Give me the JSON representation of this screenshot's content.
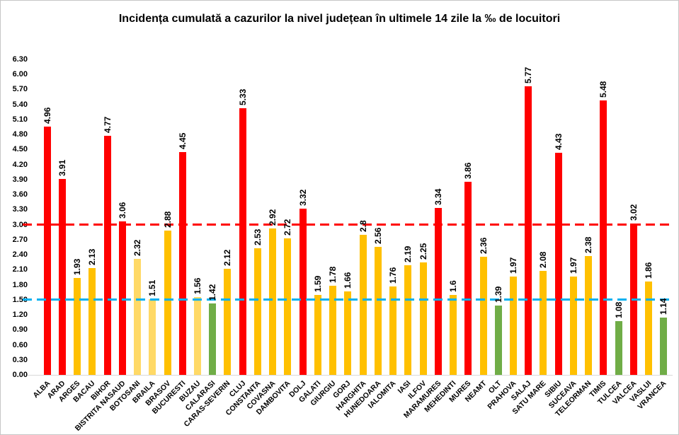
{
  "window": {
    "background": "#ffffff",
    "border_color": "#c6c6c6"
  },
  "chart_data": {
    "type": "bar",
    "title": "Incidența cumulată a cazurilor la nivel județean în ultimele 14 zile la ‰ de locuitori",
    "xlabel": "",
    "ylabel": "",
    "ylim": [
      0,
      6.3
    ],
    "y_tick_step": 0.3,
    "y_tick_labels": [
      "6.30",
      "6.00",
      "5.70",
      "5.40",
      "5.10",
      "4.80",
      "4.50",
      "4.20",
      "3.90",
      "3.60",
      "3.30",
      "3.00",
      "2.70",
      "2.40",
      "2.10",
      "1.80",
      "1.50",
      "1.20",
      "0.90",
      "0.60",
      "0.30",
      "0.00"
    ],
    "grid": false,
    "legend": "none",
    "palette": {
      "red": "#FF0000",
      "gold": "#FFC000",
      "pale_yellow": "#FFD966",
      "green": "#70AD47"
    },
    "reference_lines": [
      {
        "name": "red-threshold-line",
        "value": 3.0,
        "color": "#FF0000",
        "style": "dashed"
      },
      {
        "name": "blue-threshold-line",
        "value": 1.5,
        "color": "#00B0F0",
        "style": "dashed"
      }
    ],
    "categories": [
      "ALBA",
      "ARAD",
      "ARGES",
      "BACAU",
      "BIHOR",
      "BISTRITA NASAUD",
      "BOTOSANI",
      "BRAILA",
      "BRASOV",
      "BUCURESTI",
      "BUZAU",
      "CALARASI",
      "CARAS-SEVERIN",
      "CLUJ",
      "CONSTANTA",
      "COVASNA",
      "DAMBOVITA",
      "DOLJ",
      "GALATI",
      "GIURGIU",
      "GORJ",
      "HARGHITA",
      "HUNEDOARA",
      "IALOMITA",
      "IASI",
      "ILFOV",
      "MARAMURES",
      "MEHEDINTI",
      "MURES",
      "NEAMT",
      "OLT",
      "PRAHOVA",
      "SALAJ",
      "SATU MARE",
      "SIBIU",
      "SUCEAVA",
      "TELEORMAN",
      "TIMIS",
      "TULCEA",
      "VALCEA",
      "VASLUI",
      "VRANCEA"
    ],
    "values": [
      4.96,
      3.91,
      1.93,
      2.13,
      4.77,
      3.06,
      2.32,
      1.51,
      2.88,
      4.45,
      1.56,
      1.42,
      2.12,
      5.33,
      2.53,
      2.92,
      2.72,
      3.32,
      1.59,
      1.78,
      1.66,
      2.8,
      2.56,
      1.76,
      2.19,
      2.25,
      3.34,
      1.6,
      3.86,
      2.36,
      1.39,
      1.97,
      5.77,
      2.08,
      4.43,
      1.97,
      2.38,
      5.48,
      1.08,
      3.02,
      1.86,
      1.14
    ],
    "value_labels": [
      "4.96",
      "3.91",
      "1.93",
      "2.13",
      "4.77",
      "3.06",
      "2.32",
      "1.51",
      "2.88",
      "4.45",
      "1.56",
      "1.42",
      "2.12",
      "5.33",
      "2.53",
      "2.92",
      "2.72",
      "3.32",
      "1.59",
      "1.78",
      "1.66",
      "2.8",
      "2.56",
      "1.76",
      "2.19",
      "2.25",
      "3.34",
      "1.6",
      "3.86",
      "2.36",
      "1.39",
      "1.97",
      "5.77",
      "2.08",
      "4.43",
      "1.97",
      "2.38",
      "5.48",
      "1.08",
      "3.02",
      "1.86",
      "1.14"
    ],
    "bar_color_keys": [
      "red",
      "red",
      "gold",
      "gold",
      "red",
      "red",
      "pale_yellow",
      "pale_yellow",
      "gold",
      "red",
      "pale_yellow",
      "green",
      "gold",
      "red",
      "gold",
      "gold",
      "gold",
      "red",
      "gold",
      "gold",
      "gold",
      "gold",
      "gold",
      "gold",
      "gold",
      "gold",
      "red",
      "gold",
      "red",
      "gold",
      "green",
      "gold",
      "red",
      "gold",
      "red",
      "gold",
      "gold",
      "red",
      "green",
      "red",
      "gold",
      "green"
    ]
  }
}
